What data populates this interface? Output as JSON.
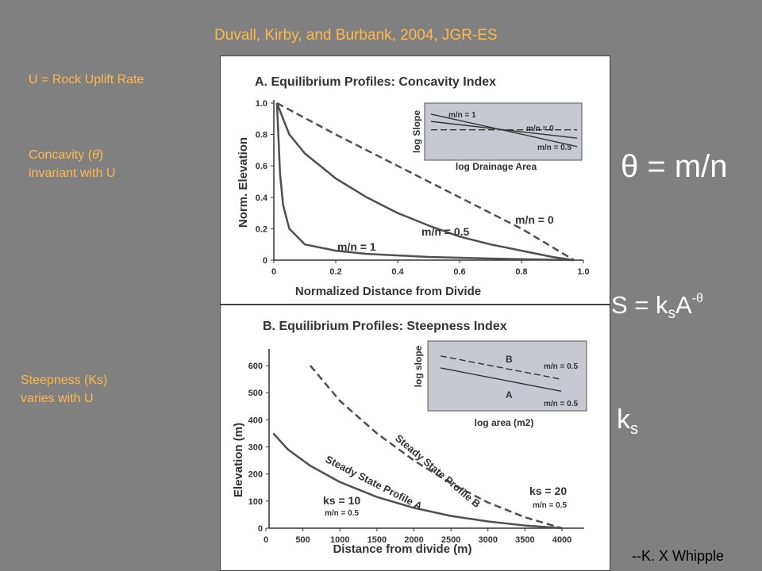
{
  "header": {
    "citation": "Duvall, Kirby, and Burbank, 2004, JGR-ES"
  },
  "left_notes": {
    "uplift": "U = Rock Uplift Rate",
    "concavity_line1_prefix": "Concavity (",
    "concavity_symbol": "θ",
    "concavity_line1_suffix": ")",
    "concavity_line2": "invariant with U",
    "steepness_line1": "Steepness  (Ks)",
    "steepness_line2": "varies with U"
  },
  "equations": {
    "theta_symbol": "θ",
    "theta_rest": " = m/n",
    "slope_main": "S = k",
    "slope_sub": "s",
    "slope_A": "A",
    "slope_exp": "-θ",
    "ks_main": "k",
    "ks_sub": "s"
  },
  "credit": "--K. X Whipple",
  "colors": {
    "background": "#808080",
    "annotation_text": "#ffb84d",
    "equation_text": "#ffffff",
    "panel_background": "#ffffff",
    "inset_background": "#c8c8d0",
    "curve": "#505050"
  },
  "chart_data": [
    {
      "type": "line",
      "title": "A. Equilibrium Profiles: Concavity Index",
      "xlabel": "Normalized Distance from Divide",
      "ylabel": "Norm. Elevation",
      "xlim": [
        0,
        1.0
      ],
      "ylim": [
        0,
        1.0
      ],
      "x_ticks": [
        "0",
        "0.2",
        "0.4",
        "0.6",
        "0.8",
        "1.0"
      ],
      "y_ticks": [
        "0",
        "0.2",
        "0.4",
        "0.6",
        "0.8",
        "1.0"
      ],
      "x_tick_values": [
        0,
        0.2,
        0.4,
        0.6,
        0.8,
        1.0
      ],
      "y_tick_values": [
        0,
        0.2,
        0.4,
        0.6,
        0.8,
        1.0
      ],
      "series": [
        {
          "name": "m/n = 0",
          "style": "dashed",
          "x": [
            0.01,
            0.2,
            0.4,
            0.6,
            0.8,
            0.97
          ],
          "y": [
            1.0,
            0.8,
            0.6,
            0.4,
            0.2,
            0.0
          ]
        },
        {
          "name": "m/n = 0.5",
          "style": "solid",
          "x": [
            0.01,
            0.05,
            0.1,
            0.2,
            0.3,
            0.4,
            0.5,
            0.6,
            0.7,
            0.8,
            0.9,
            0.97
          ],
          "y": [
            1.0,
            0.8,
            0.68,
            0.52,
            0.4,
            0.3,
            0.22,
            0.15,
            0.1,
            0.06,
            0.02,
            0.0
          ]
        },
        {
          "name": "m/n = 1",
          "style": "solid",
          "x": [
            0.01,
            0.02,
            0.03,
            0.05,
            0.1,
            0.2,
            0.3,
            0.5,
            0.7,
            0.97
          ],
          "y": [
            1.0,
            0.55,
            0.35,
            0.2,
            0.1,
            0.06,
            0.04,
            0.02,
            0.01,
            0.0
          ]
        }
      ],
      "inset": {
        "xlabel": "log Drainage Area",
        "ylabel": "log Slope",
        "lines": [
          {
            "name": "m/n = 1",
            "style": "solid",
            "x": [
              0,
              1
            ],
            "y": [
              0.82,
              0.2
            ]
          },
          {
            "name": "m/n = 0",
            "style": "dashed",
            "x": [
              0,
              1
            ],
            "y": [
              0.52,
              0.52
            ]
          },
          {
            "name": "m/n = 0.5",
            "style": "solid",
            "x": [
              0,
              1
            ],
            "y": [
              0.68,
              0.36
            ]
          }
        ]
      }
    },
    {
      "type": "line",
      "title": "B. Equilibrium Profiles: Steepness Index",
      "xlabel": "Distance from divide (m)",
      "ylabel": "Elevation (m)",
      "xlim": [
        0,
        4300
      ],
      "ylim": [
        0,
        650
      ],
      "x_ticks": [
        "0",
        "500",
        "1000",
        "1500",
        "2000",
        "2500",
        "3000",
        "3500",
        "4000"
      ],
      "y_ticks": [
        "0",
        "100",
        "200",
        "300",
        "400",
        "500",
        "600"
      ],
      "x_tick_values": [
        0,
        500,
        1000,
        1500,
        2000,
        2500,
        3000,
        3500,
        4000
      ],
      "y_tick_values": [
        0,
        100,
        200,
        300,
        400,
        500,
        600
      ],
      "series": [
        {
          "name": "Steady State Profile A",
          "style": "solid",
          "x": [
            100,
            300,
            600,
            1000,
            1500,
            2000,
            2500,
            3000,
            3500,
            4000
          ],
          "y": [
            350,
            290,
            230,
            170,
            115,
            75,
            45,
            25,
            10,
            0
          ]
        },
        {
          "name": "Steady State Profile B",
          "style": "dashed",
          "x": [
            600,
            1000,
            1500,
            2000,
            2500,
            3000,
            3500,
            4000
          ],
          "y": [
            600,
            470,
            350,
            250,
            165,
            95,
            40,
            0
          ]
        }
      ],
      "annotations": {
        "label_A": "Steady State Profile  A",
        "label_B": "Steady State Profile  B",
        "ks_A": "ks = 10",
        "ks_A_mn": "m/n = 0.5",
        "ks_B": "ks = 20",
        "ks_B_mn": "m/n = 0.5"
      },
      "inset": {
        "xlabel": "log area (m2)",
        "ylabel": "log slope",
        "lines": [
          {
            "name": "B",
            "style": "dashed",
            "x": [
              0,
              1
            ],
            "y": [
              0.8,
              0.45
            ]
          },
          {
            "name": "A",
            "style": "solid",
            "x": [
              0,
              1
            ],
            "y": [
              0.62,
              0.27
            ]
          }
        ],
        "labels": {
          "B": "B",
          "A": "A",
          "mn_B": "m/n = 0.5",
          "mn_A": "m/n = 0.5"
        }
      }
    }
  ]
}
